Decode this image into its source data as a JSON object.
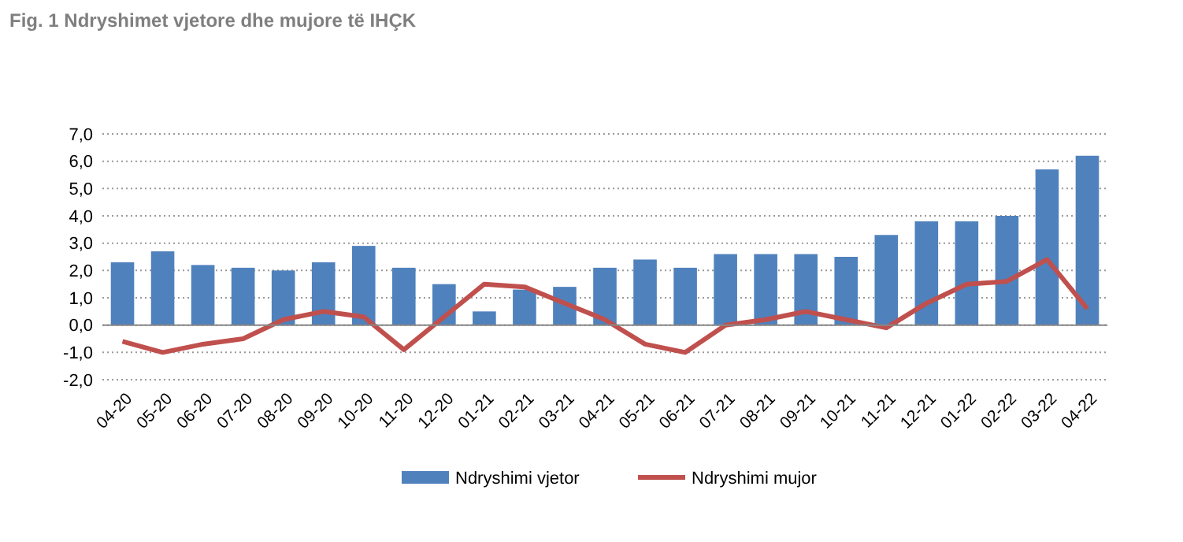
{
  "chart_data": {
    "type": "bar",
    "title": "Fig. 1 Ndryshimet vjetore dhe mujore të IHÇK",
    "categories": [
      "04-20",
      "05-20",
      "06-20",
      "07-20",
      "08-20",
      "09-20",
      "10-20",
      "11-20",
      "12-20",
      "01-21",
      "02-21",
      "03-21",
      "04-21",
      "05-21",
      "06-21",
      "07-21",
      "08-21",
      "09-21",
      "10-21",
      "11-21",
      "12-21",
      "01-22",
      "02-22",
      "03-22",
      "04-22"
    ],
    "series": [
      {
        "name": "Ndryshimi vjetor",
        "color": "#4f81bd",
        "values": [
          2.3,
          2.7,
          2.2,
          2.1,
          2.0,
          2.3,
          2.9,
          2.1,
          1.5,
          0.5,
          1.3,
          1.4,
          2.1,
          2.4,
          2.1,
          2.6,
          2.6,
          2.6,
          2.5,
          3.3,
          3.8,
          3.8,
          4.0,
          5.7,
          6.2
        ]
      },
      {
        "name": "Ndryshimi mujor",
        "color": "#c0504d",
        "type": "line",
        "values": [
          -0.6,
          -1.0,
          -0.7,
          -0.5,
          0.2,
          0.5,
          0.3,
          -0.9,
          0.3,
          1.5,
          1.4,
          0.8,
          0.2,
          -0.7,
          -1.0,
          0.0,
          0.2,
          0.5,
          0.2,
          -0.1,
          0.8,
          1.5,
          1.6,
          2.4,
          0.6
        ]
      }
    ],
    "ylim": [
      -2,
      7
    ],
    "yticks": [
      {
        "value": -2,
        "label": "-2,0"
      },
      {
        "value": -1,
        "label": "-1,0"
      },
      {
        "value": 0,
        "label": "0,0"
      },
      {
        "value": 1,
        "label": "1,0"
      },
      {
        "value": 2,
        "label": "2,0"
      },
      {
        "value": 3,
        "label": "3,0"
      },
      {
        "value": 4,
        "label": "4,0"
      },
      {
        "value": 5,
        "label": "5,0"
      },
      {
        "value": 6,
        "label": "6,0"
      },
      {
        "value": 7,
        "label": "7,0"
      }
    ],
    "grid": "y",
    "legend": "bottom",
    "marker": "none",
    "line_style": "solid"
  }
}
